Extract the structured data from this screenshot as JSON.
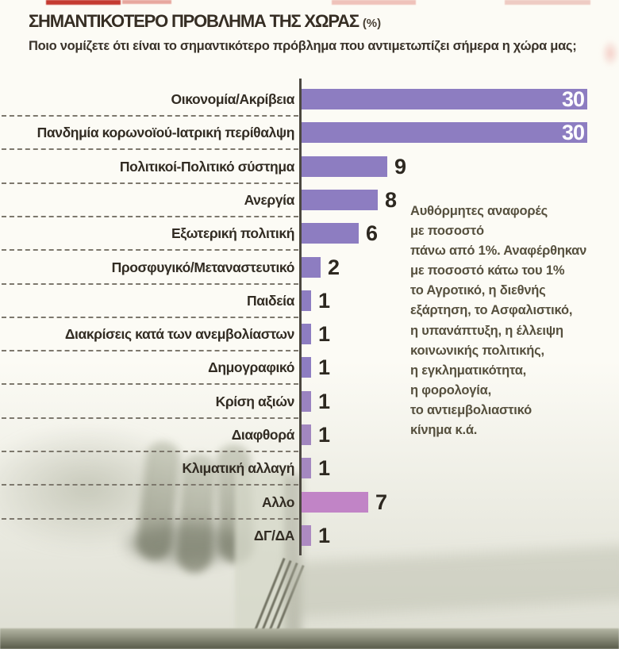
{
  "header": {
    "title": "ΣΗΜΑΝΤΙΚΟΤΕΡΟ ΠΡΟΒΛΗΜΑ ΤΗΣ ΧΩΡΑΣ",
    "title_suffix": "(%)",
    "question": "Ποιο νομίζετε ότι είναι το σημαντικότερο πρόβλημα που αντιμετωπίζει σήμερα η χώρα μας;"
  },
  "chart_data": {
    "type": "bar",
    "orientation": "horizontal",
    "title": "ΣΗΜΑΝΤΙΚΟΤΕΡΟ ΠΡΟΒΛΗΜΑ ΤΗΣ ΧΩΡΑΣ (%)",
    "question": "Ποιο νομίζετε ότι είναι το σημαντικότερο πρόβλημα που αντιμετωπίζει σήμερα η χώρα μας;",
    "unit": "%",
    "xlim": [
      0,
      30
    ],
    "grid": false,
    "legend": "none",
    "categories": [
      "Οικονομία/Ακρίβεια",
      "Πανδημία κορωνοϊού-Ιατρική περίθαλψη",
      "Πολιτικοί-Πολιτικό σύστημα",
      "Ανεργία",
      "Εξωτερική πολιτική",
      "Προσφυγικό/Μεταναστευτικό",
      "Παιδεία",
      "Διακρίσεις κατά των ανεμβολίαστων",
      "Δημογραφικό",
      "Κρίση αξιών",
      "Διαφθορά",
      "Κλιματική αλλαγή",
      "Αλλο",
      "ΔΓ/ΔΑ"
    ],
    "values": [
      30,
      30,
      9,
      8,
      6,
      2,
      1,
      1,
      1,
      1,
      1,
      1,
      7,
      1
    ],
    "bar_colors": [
      "#8d7dc1",
      "#8d7dc1",
      "#8d7dc1",
      "#8d7dc1",
      "#8d7dc1",
      "#8d7dc1",
      "#8d7dc1",
      "#8d7dc1",
      "#8d7dc1",
      "#9a83c0",
      "#a287bf",
      "#a488c0",
      "#c184c6",
      "#ad8ac1"
    ],
    "value_label_color_inside": "#ffffff",
    "value_label_color_outside": "#2d2820",
    "value_inside_threshold": 15,
    "annotation_lines": [
      "Αυθόρμητες αναφορές",
      "με ποσοστό",
      "πάνω από 1%. Αναφέρθηκαν",
      "με ποσοστό κάτω του 1%",
      "το Αγροτικό, η διεθνής",
      "εξάρτηση, το Ασφαλιστικό,",
      "η υπανάπτυξη, η έλλειψη",
      "κοινωνικής πολιτικής,",
      "η εγκληματικότητα,",
      "η φορολογία,",
      "το αντιεμβολιαστικό",
      "κίνημα κ.ά."
    ]
  }
}
